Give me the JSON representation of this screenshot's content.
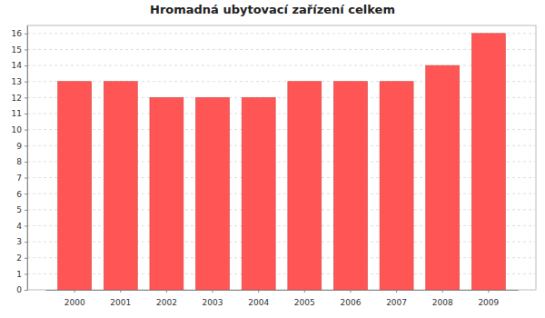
{
  "chart_data": {
    "type": "bar",
    "title": "Hromadná ubytovací zařízení celkem",
    "categories": [
      "2000",
      "2001",
      "2002",
      "2003",
      "2004",
      "2005",
      "2006",
      "2007",
      "2008",
      "2009"
    ],
    "values": [
      13,
      13,
      12,
      12,
      12,
      13,
      13,
      13,
      14,
      16
    ],
    "color": "#ff5555",
    "ylim": [
      0,
      16.5
    ],
    "yticks": [
      0,
      1,
      2,
      3,
      4,
      5,
      6,
      7,
      8,
      9,
      10,
      11,
      12,
      13,
      14,
      15,
      16
    ],
    "grid": true
  }
}
